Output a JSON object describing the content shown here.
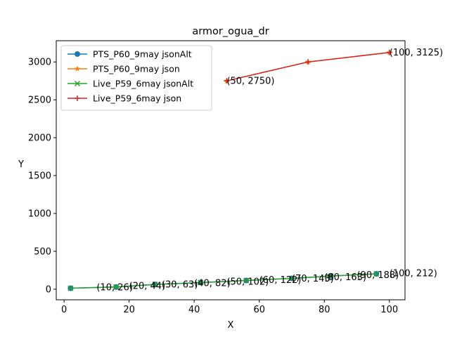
{
  "chart_data": {
    "type": "line",
    "title": "armor_ogua_dr",
    "xlabel": "X",
    "ylabel": "Y",
    "xlim": [
      -2.4,
      104.8
    ],
    "ylim": [
      -140,
      3280
    ],
    "xticks": [
      0,
      20,
      40,
      60,
      80,
      100
    ],
    "yticks": [
      0,
      500,
      1000,
      1500,
      2000,
      2500,
      3000
    ],
    "grid": false,
    "legend_position": "top-left",
    "series": [
      {
        "name": "PTS_P60_9may jsonAlt",
        "color": "#1f77b4",
        "marker": "circle",
        "x": [
          2,
          16,
          28,
          42,
          56,
          70,
          82,
          96
        ],
        "y": [
          13,
          29,
          63,
          87,
          115,
          143,
          173,
          203
        ]
      },
      {
        "name": "PTS_P60_9may json",
        "color": "#ff7f0e",
        "marker": "star",
        "x": [
          50,
          75,
          100
        ],
        "y": [
          2750,
          3000,
          3125
        ]
      },
      {
        "name": "Live_P59_6may jsonAlt",
        "color": "#2ca02c",
        "marker": "x",
        "x": [
          2,
          16,
          28,
          42,
          56,
          70,
          82,
          96
        ],
        "y": [
          13,
          29,
          63,
          87,
          115,
          143,
          173,
          203
        ]
      },
      {
        "name": "Live_P59_6may json",
        "color": "#d62728",
        "marker": "plus",
        "x": [
          50,
          75,
          100
        ],
        "y": [
          2750,
          3000,
          3125
        ]
      }
    ],
    "annotations": [
      {
        "text": "(10, 26)",
        "x": 10,
        "y": 26
      },
      {
        "text": "(20, 44)",
        "x": 20,
        "y": 44
      },
      {
        "text": "(30, 63)",
        "x": 30,
        "y": 63
      },
      {
        "text": "(40, 82)",
        "x": 40,
        "y": 82
      },
      {
        "text": "(50, 102)",
        "x": 50,
        "y": 102
      },
      {
        "text": "(60, 122)",
        "x": 60,
        "y": 122
      },
      {
        "text": "(70, 143)",
        "x": 70,
        "y": 143
      },
      {
        "text": "(80, 163)",
        "x": 80,
        "y": 163
      },
      {
        "text": "(90, 188)",
        "x": 90,
        "y": 188
      },
      {
        "text": "(100, 212)",
        "x": 100,
        "y": 212
      },
      {
        "text": "(50, 2750)",
        "x": 50,
        "y": 2750
      },
      {
        "text": "(100, 3125)",
        "x": 100,
        "y": 3125
      }
    ]
  }
}
